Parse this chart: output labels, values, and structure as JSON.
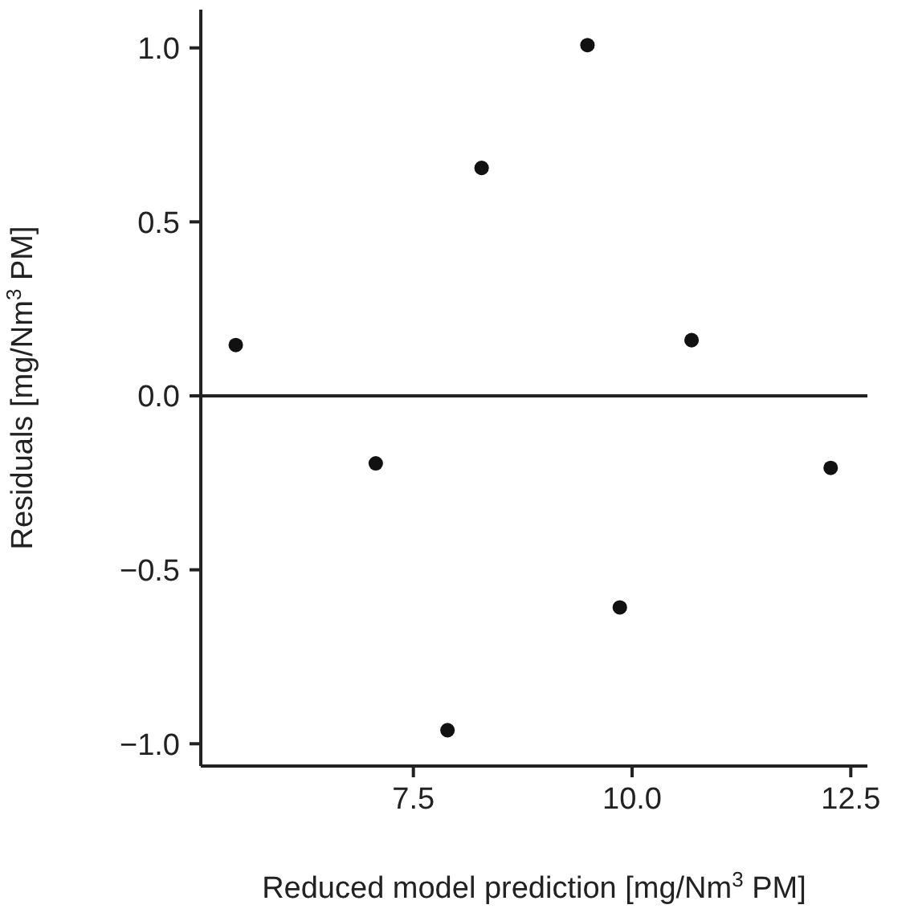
{
  "chart_data": {
    "type": "scatter",
    "xlabel": "Reduced model prediction [mg/Nm$^{3}$ PM]",
    "ylabel": "Residuals [mg/Nm$^{3}$ PM]",
    "x": [
      5.47,
      7.07,
      7.89,
      8.28,
      9.49,
      9.86,
      10.68,
      12.27
    ],
    "values": [
      0.146,
      -0.194,
      -0.961,
      0.655,
      1.008,
      -0.608,
      0.16,
      -0.207
    ],
    "color": "#111111",
    "marker": "circle",
    "xlim": [
      5.07,
      12.69
    ],
    "xticks": [
      {
        "value": 7.5,
        "label": "7.5"
      },
      {
        "value": 10,
        "label": "10.0"
      },
      {
        "value": 12.5,
        "label": "12.5"
      }
    ],
    "ylim": [
      -1.064,
      1.11
    ],
    "yticks": [
      {
        "value": -1,
        "label": "−1.0"
      },
      {
        "value": -0.5,
        "label": "−0.5"
      },
      {
        "value": 0,
        "label": "0.0"
      },
      {
        "value": 0.5,
        "label": "0.5"
      },
      {
        "value": 1,
        "label": "1.0"
      }
    ],
    "ref_lines": [
      {
        "axis": "y",
        "value": 0,
        "color": "#222222"
      }
    ],
    "grid": false,
    "legend": false
  }
}
